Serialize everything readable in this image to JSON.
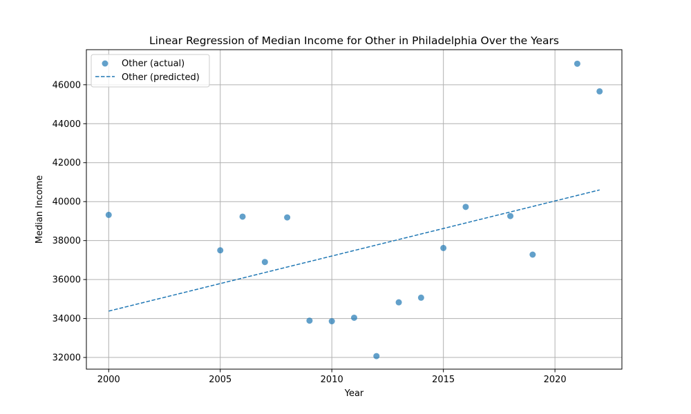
{
  "chart_data": {
    "type": "scatter",
    "title": "Linear Regression of Median Income for Other in Philadelphia Over the Years",
    "xlabel": "Year",
    "ylabel": "Median Income",
    "xlim": [
      1999.0,
      2023.0
    ],
    "ylim": [
      31400,
      47800
    ],
    "xticks": [
      2000,
      2005,
      2010,
      2015,
      2020
    ],
    "yticks": [
      32000,
      34000,
      36000,
      38000,
      40000,
      42000,
      44000,
      46000
    ],
    "grid": true,
    "legend_position": "top-left",
    "series": [
      {
        "name": "Other (actual)",
        "kind": "scatter",
        "color": "#1f77b4",
        "x": [
          2000,
          2005,
          2006,
          2007,
          2008,
          2009,
          2010,
          2011,
          2012,
          2013,
          2014,
          2015,
          2016,
          2018,
          2019,
          2021,
          2022
        ],
        "y": [
          39320,
          37500,
          39230,
          36900,
          39190,
          33890,
          33860,
          34040,
          32070,
          34830,
          35070,
          37620,
          39730,
          39260,
          37280,
          47080,
          45660
        ]
      },
      {
        "name": "Other (predicted)",
        "kind": "line",
        "style": "dashed",
        "color": "#1f77b4",
        "x": [
          2000,
          2022
        ],
        "y": [
          34380,
          40600
        ]
      }
    ]
  }
}
